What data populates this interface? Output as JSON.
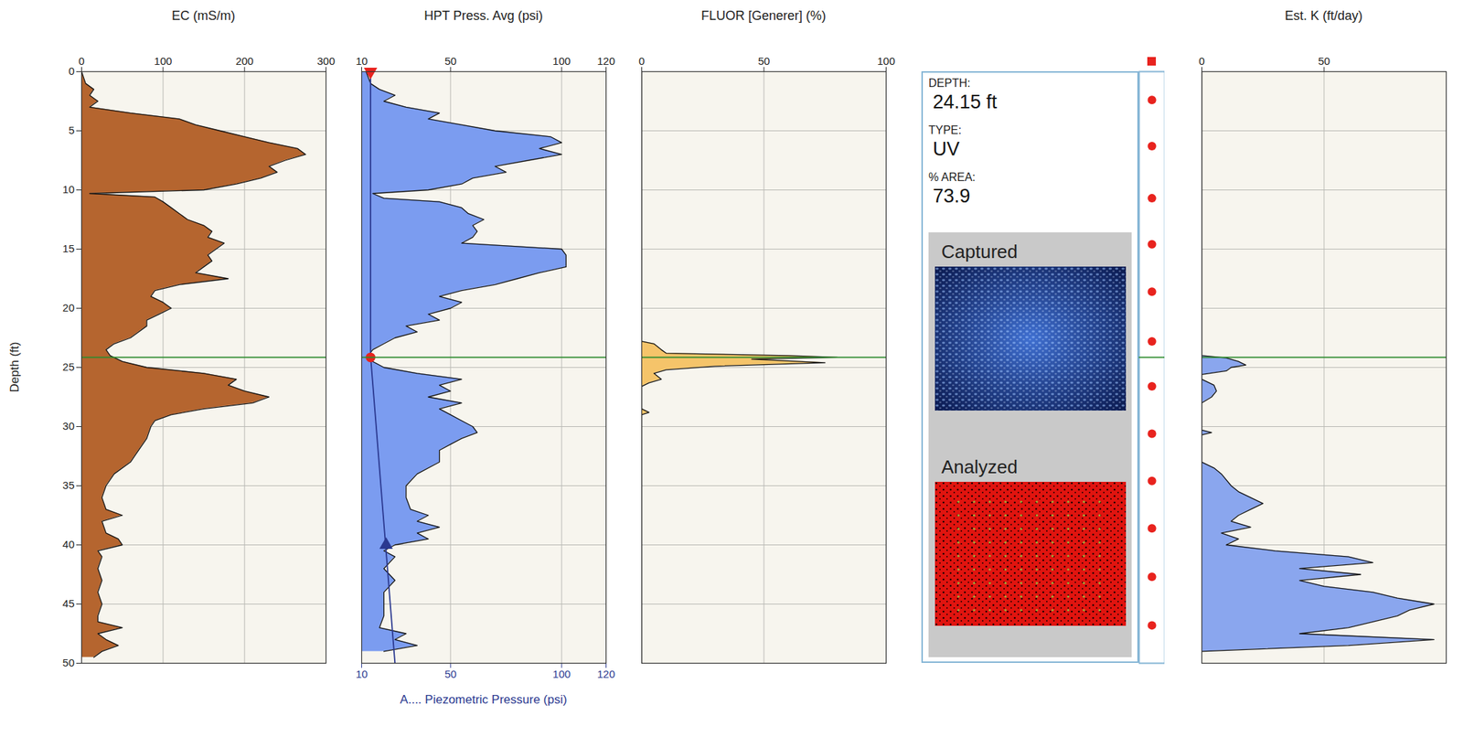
{
  "chart_data": [
    {
      "type": "area",
      "title": "EC (mS/m)",
      "ylabel": "Depth (ft)",
      "orientation": "horizontal",
      "grid": true,
      "xlim": [
        0,
        300
      ],
      "xticks": [
        0,
        100,
        200,
        300
      ],
      "ylim": [
        0,
        50
      ],
      "yticks": [
        0,
        5,
        10,
        15,
        20,
        25,
        30,
        35,
        40,
        45,
        50
      ],
      "series": [
        {
          "type": "area",
          "color": "#b5652f",
          "y": [
            0,
            1,
            1.5,
            2,
            2.5,
            3,
            3.5,
            4,
            4.5,
            5,
            5.5,
            6,
            6.5,
            7,
            7.5,
            8,
            8.5,
            9,
            9.5,
            10,
            10.3,
            10.6,
            11,
            11.5,
            12,
            12.5,
            13,
            13.5,
            14,
            14.5,
            15,
            15.5,
            16,
            16.5,
            17,
            17.5,
            18,
            18.5,
            19,
            19.5,
            20,
            20.5,
            21,
            21.5,
            22,
            22.5,
            23,
            23.5,
            24,
            24.5,
            25,
            25.5,
            26,
            26.5,
            27,
            27.5,
            28,
            28.5,
            29,
            29.5,
            30,
            31,
            32,
            33,
            34,
            35,
            36,
            37,
            37.5,
            38,
            39,
            39.5,
            40,
            40.5,
            41,
            42,
            43,
            44,
            45,
            46,
            46.5,
            47,
            47.5,
            48,
            48.5,
            49,
            49.5
          ],
          "values": [
            0,
            5,
            15,
            10,
            20,
            10,
            60,
            120,
            140,
            170,
            200,
            230,
            265,
            275,
            250,
            230,
            240,
            220,
            190,
            150,
            10,
            90,
            100,
            110,
            120,
            130,
            150,
            160,
            155,
            175,
            165,
            155,
            160,
            150,
            140,
            180,
            120,
            90,
            85,
            100,
            110,
            95,
            80,
            80,
            70,
            60,
            40,
            30,
            35,
            50,
            80,
            150,
            190,
            180,
            200,
            230,
            210,
            150,
            110,
            90,
            85,
            80,
            70,
            60,
            40,
            30,
            25,
            30,
            50,
            25,
            30,
            45,
            50,
            20,
            25,
            20,
            25,
            20,
            25,
            20,
            20,
            50,
            20,
            30,
            45,
            25,
            15
          ]
        }
      ]
    },
    {
      "type": "area",
      "title": "HPT Press. Avg (psi)",
      "xlabel": "A.... Piezometric Pressure (psi)",
      "orientation": "horizontal",
      "grid": true,
      "tick_labels": "x",
      "xlim": [
        10,
        120
      ],
      "xticks": [
        10,
        50,
        100,
        120
      ],
      "ylim": [
        0,
        50
      ],
      "yticks": [
        0,
        5,
        10,
        15,
        20,
        25,
        30,
        35,
        40,
        45,
        50
      ],
      "series": [
        {
          "type": "area",
          "color": "#7b9cf0",
          "y": [
            0,
            0.5,
            1,
            1.5,
            2,
            2.5,
            3,
            3.5,
            4,
            4.5,
            5,
            5.5,
            6,
            6.5,
            7,
            7.5,
            8,
            8.5,
            9,
            9.5,
            10,
            10.3,
            10.7,
            11,
            11.5,
            12,
            12.5,
            13,
            13.5,
            14,
            14.5,
            15,
            15.5,
            16,
            16.5,
            17,
            17.5,
            18,
            18.5,
            19,
            19.5,
            20,
            20.5,
            21,
            21.5,
            22,
            22.5,
            23,
            23.5,
            24,
            24.5,
            25,
            25.5,
            26,
            26.5,
            27,
            27.5,
            28,
            28.5,
            29,
            29.5,
            30,
            30.5,
            31,
            31.5,
            32,
            33,
            34,
            35,
            36,
            37,
            37.5,
            38,
            38.5,
            39,
            39.5,
            40,
            40.5,
            41,
            42,
            43,
            44,
            45,
            46,
            47,
            47.5,
            48,
            48.5,
            49
          ],
          "values": [
            12,
            13,
            14,
            18,
            25,
            20,
            30,
            45,
            40,
            55,
            70,
            95,
            100,
            90,
            100,
            85,
            70,
            75,
            60,
            55,
            40,
            15,
            20,
            45,
            55,
            58,
            65,
            60,
            62,
            60,
            55,
            100,
            102,
            102,
            102,
            90,
            80,
            70,
            55,
            45,
            55,
            50,
            40,
            45,
            30,
            35,
            25,
            20,
            15,
            13,
            15,
            20,
            35,
            55,
            45,
            50,
            40,
            55,
            45,
            50,
            55,
            60,
            62,
            55,
            50,
            45,
            45,
            35,
            30,
            30,
            32,
            40,
            35,
            45,
            35,
            40,
            25,
            20,
            25,
            20,
            25,
            20,
            20,
            20,
            18,
            30,
            25,
            35,
            20
          ]
        },
        {
          "type": "line",
          "color": "#2b3990",
          "y": [
            0,
            24,
            50
          ],
          "values": [
            14,
            14,
            25
          ]
        },
        {
          "type": "scatter",
          "marker": "triangle-down",
          "color": "#e8231e",
          "y": [
            0
          ],
          "values": [
            14
          ]
        },
        {
          "type": "scatter",
          "marker": "circle",
          "color": "#e8231e",
          "y": [
            24.15
          ],
          "values": [
            14
          ]
        },
        {
          "type": "scatter",
          "marker": "triangle",
          "color": "#2b3990",
          "y": [
            40
          ],
          "values": [
            21
          ]
        }
      ]
    },
    {
      "type": "area",
      "title": "FLUOR [Generer] (%)",
      "orientation": "horizontal",
      "grid": true,
      "tick_labels": "x",
      "xlim": [
        0,
        100
      ],
      "xticks": [
        0,
        50,
        100
      ],
      "ylim": [
        0,
        50
      ],
      "yticks": [
        0,
        5,
        10,
        15,
        20,
        25,
        30,
        35,
        40,
        45,
        50
      ],
      "series": [
        {
          "type": "area",
          "color": "#f5c46a",
          "y": [
            0,
            22.8,
            23,
            23.5,
            23.8,
            24,
            24.15,
            24.3,
            24.6,
            24.9,
            25.2,
            25.5,
            26,
            26.3,
            26.6,
            28.5,
            28.8,
            29,
            50
          ],
          "values": [
            0,
            0,
            5,
            8,
            10,
            60,
            80,
            45,
            75,
            30,
            10,
            5,
            8,
            3,
            0,
            0,
            3,
            0,
            0
          ]
        }
      ]
    },
    {
      "type": "area",
      "title": "Est. K (ft/day)",
      "orientation": "horizontal",
      "grid": true,
      "tick_labels": "x",
      "xlim": [
        0,
        100
      ],
      "xticks": [
        0,
        50
      ],
      "ylim": [
        0,
        50
      ],
      "yticks": [
        0,
        5,
        10,
        15,
        20,
        25,
        30,
        35,
        40,
        45,
        50
      ],
      "series": [
        {
          "type": "area",
          "color": "#8aa6ee",
          "y": [
            0,
            24,
            24.2,
            24.5,
            24.8,
            25,
            25.3,
            25.6,
            26,
            26.5,
            27,
            27.5,
            28,
            30.3,
            30.5,
            30.7,
            33,
            33.5,
            34,
            35,
            35.5,
            36,
            36.5,
            37,
            37.5,
            38,
            38.5,
            39,
            39.5,
            40,
            40.5,
            41,
            41.5,
            42,
            42.5,
            43,
            43.5,
            44,
            44.5,
            45,
            45.5,
            46,
            46.5,
            47,
            47.5,
            48,
            48.5,
            49
          ],
          "values": [
            0,
            0,
            10,
            15,
            18,
            12,
            10,
            0,
            0,
            5,
            6,
            4,
            0,
            0,
            4,
            0,
            0,
            5,
            8,
            12,
            15,
            20,
            25,
            20,
            15,
            12,
            20,
            8,
            15,
            10,
            30,
            60,
            70,
            40,
            65,
            40,
            50,
            70,
            80,
            95,
            85,
            80,
            70,
            60,
            40,
            95,
            60,
            0
          ]
        }
      ]
    }
  ],
  "cursor": {
    "depth": 24.15,
    "color": "#2e8b2e"
  },
  "image_panel": {
    "fields": [
      {
        "label": "DEPTH:",
        "value": "24.15 ft"
      },
      {
        "label": "TYPE:",
        "value": "UV"
      },
      {
        "label": "% AREA:",
        "value": 73.9
      }
    ],
    "images": [
      "Captured",
      "Analyzed"
    ],
    "ylim": [
      0,
      50
    ],
    "capture_depths": [
      2.4,
      6.3,
      10.7,
      14.6,
      18.6,
      22.8,
      26.6,
      30.6,
      34.6,
      38.6,
      42.7,
      46.8
    ],
    "capture_color": "#e8231e"
  }
}
